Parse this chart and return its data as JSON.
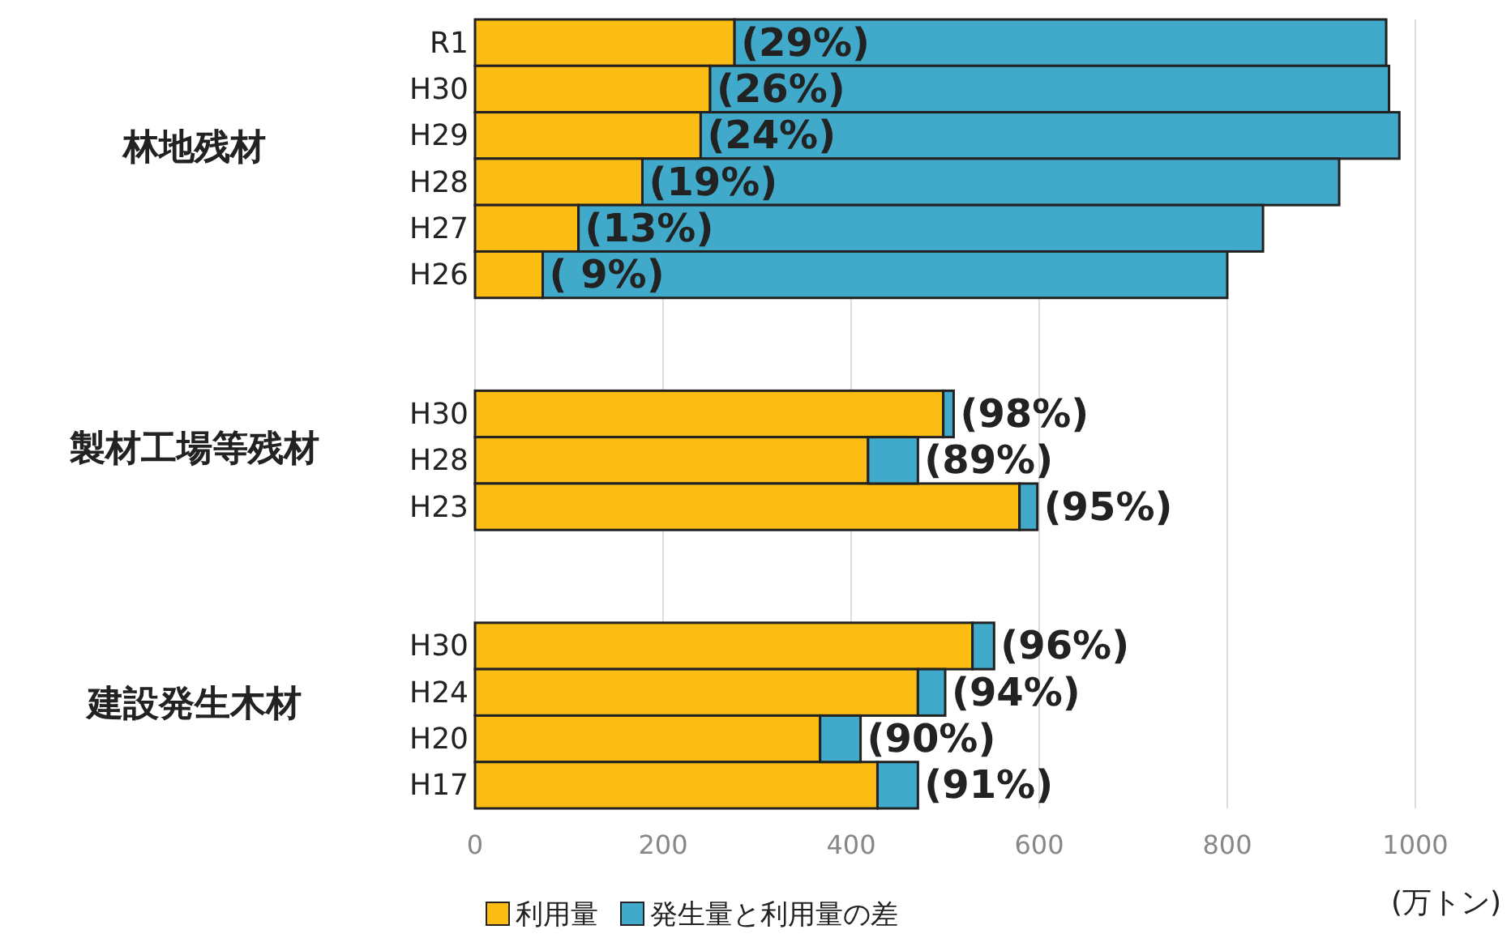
{
  "chart_data": {
    "type": "bar",
    "orientation": "horizontal",
    "stacked": true,
    "categories": [
      "R1",
      "H30",
      "H29",
      "H28",
      "H27",
      "H26",
      null,
      null,
      "H30",
      "H28",
      "H23",
      null,
      null,
      "H30",
      "H24",
      "H20",
      "H17"
    ],
    "series": [
      {
        "name": "利用量",
        "color": "#fbbc13",
        "values": [
          276,
          250,
          240,
          178,
          110,
          72,
          null,
          null,
          498,
          418,
          579,
          null,
          null,
          529,
          471,
          367,
          428
        ]
      },
      {
        "name": "発生量と利用量の差",
        "color": "#41a9c9",
        "values": [
          693,
          722,
          743,
          741,
          728,
          728,
          null,
          null,
          11,
          53,
          19,
          null,
          null,
          23,
          29,
          43,
          43
        ]
      }
    ],
    "xlim": [
      0,
      1000
    ],
    "xticks": [
      0,
      200,
      400,
      600,
      800,
      1000
    ],
    "grid": "x",
    "legend": "bottom",
    "xlabel": "(万トン)",
    "annotations": [
      "林地残材",
      "製材工場等残材",
      "建設発生木材",
      {
        "text": "(29%)",
        "x": 276
      },
      {
        "text": "(26%)",
        "x": 250
      },
      {
        "text": "(24%)",
        "x": 240
      },
      {
        "text": "(19%)",
        "x": 178
      },
      {
        "text": "(13%)",
        "x": 110
      },
      {
        "text": "( 9%)",
        "x": 72
      },
      {
        "text": "(98%)",
        "x": 509
      },
      {
        "text": "(89%)",
        "x": 471
      },
      {
        "text": "(95%)",
        "x": 598
      },
      {
        "text": "(96%)",
        "x": 552
      },
      {
        "text": "(94%)",
        "x": 500
      },
      {
        "text": "(90%)",
        "x": 410
      },
      {
        "text": "(91%)",
        "x": 471
      }
    ]
  }
}
